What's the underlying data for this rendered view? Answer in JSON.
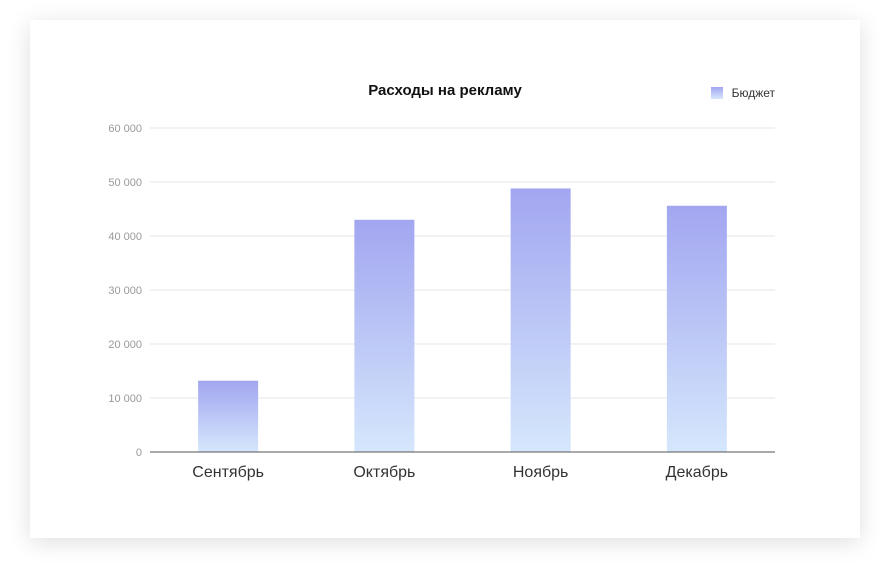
{
  "chart_data": {
    "type": "bar",
    "title": "Расходы на рекламу",
    "categories": [
      "Сентябрь",
      "Октябрь",
      "Ноябрь",
      "Декабрь"
    ],
    "series": [
      {
        "name": "Бюджет",
        "values": [
          13200,
          43000,
          48800,
          45600
        ]
      }
    ],
    "yticks": [
      "0",
      "10 000",
      "20 000",
      "30 000",
      "40 000",
      "50 000",
      "60 000"
    ],
    "ylim": [
      0,
      60000
    ],
    "grid": true,
    "legend_position": "top-right",
    "colors": {
      "bar_top": "#a2a6f0",
      "bar_bottom": "#d5e7fc",
      "grid": "#e6e6e6",
      "axis": "#555555",
      "tick_text": "#999999",
      "category_text": "#333333"
    }
  }
}
